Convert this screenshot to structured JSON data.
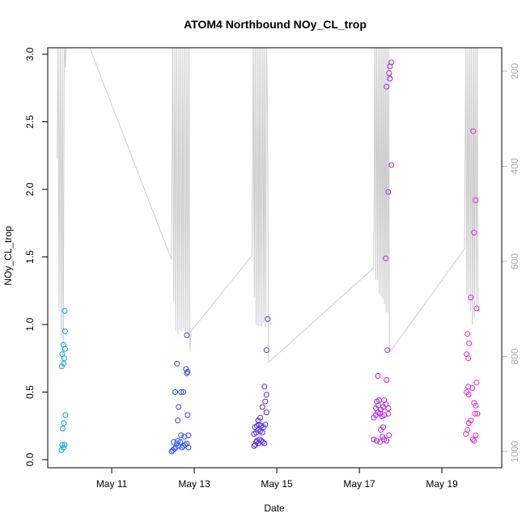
{
  "chart_data": {
    "type": "scatter",
    "title": "ATOM4 Northbound NOy_CL_trop",
    "xlabel": "Date",
    "ylabel": "NOy_CL_trop",
    "x_ticks": [
      "May 11",
      "May 13",
      "May 15",
      "May 17",
      "May 19"
    ],
    "x_tick_values": [
      11,
      13,
      15,
      17,
      19
    ],
    "xlim": [
      9.45,
      20.45
    ],
    "ylim": [
      0,
      3.0
    ],
    "y_ticks": [
      0.0,
      0.5,
      1.0,
      1.5,
      2.0,
      2.5,
      3.0
    ],
    "y_tick_labels": [
      "0.0",
      "0.5",
      "1.0",
      "1.5",
      "2.0",
      "2.5",
      "3.0"
    ],
    "right_axis": {
      "color": "#bbbbbb",
      "label": "",
      "ticks": [
        200,
        400,
        600,
        800,
        1000
      ],
      "tick_labels": [
        "200",
        "400",
        "600",
        "800",
        "1000"
      ],
      "range": [
        1020,
        140
      ],
      "reversed": true
    },
    "grid": false,
    "legend": "none",
    "point_color_gradient": [
      "#00aaee",
      "#2255ff",
      "#5522ee",
      "#aa22ee",
      "#ee22cc"
    ],
    "line_color": "#cccccc",
    "points": [
      [
        9.78,
        0.07
      ],
      [
        9.8,
        0.11
      ],
      [
        9.83,
        0.09
      ],
      [
        9.86,
        0.11
      ],
      [
        9.81,
        0.23
      ],
      [
        9.84,
        0.27
      ],
      [
        9.88,
        0.33
      ],
      [
        9.79,
        0.69
      ],
      [
        9.8,
        0.78
      ],
      [
        9.84,
        0.71
      ],
      [
        9.85,
        0.75
      ],
      [
        9.87,
        0.82
      ],
      [
        9.83,
        0.85
      ],
      [
        9.87,
        0.95
      ],
      [
        9.86,
        1.1
      ],
      [
        12.45,
        0.06
      ],
      [
        12.48,
        0.07
      ],
      [
        12.52,
        0.08
      ],
      [
        12.55,
        0.09
      ],
      [
        12.58,
        0.12
      ],
      [
        12.62,
        0.1
      ],
      [
        12.66,
        0.13
      ],
      [
        12.7,
        0.09
      ],
      [
        12.74,
        0.1
      ],
      [
        12.78,
        0.11
      ],
      [
        12.82,
        0.12
      ],
      [
        12.86,
        0.09
      ],
      [
        12.5,
        0.13
      ],
      [
        12.6,
        0.14
      ],
      [
        12.76,
        0.17
      ],
      [
        12.68,
        0.18
      ],
      [
        12.86,
        0.18
      ],
      [
        12.6,
        0.29
      ],
      [
        12.84,
        0.33
      ],
      [
        12.62,
        0.39
      ],
      [
        12.54,
        0.5
      ],
      [
        12.68,
        0.5
      ],
      [
        12.74,
        0.5
      ],
      [
        12.82,
        0.64
      ],
      [
        12.8,
        0.67
      ],
      [
        12.58,
        0.71
      ],
      [
        12.84,
        0.65
      ],
      [
        12.82,
        0.92
      ],
      [
        14.45,
        0.1
      ],
      [
        14.48,
        0.11
      ],
      [
        14.5,
        0.13
      ],
      [
        14.52,
        0.14
      ],
      [
        14.55,
        0.12
      ],
      [
        14.58,
        0.15
      ],
      [
        14.62,
        0.14
      ],
      [
        14.66,
        0.13
      ],
      [
        14.7,
        0.12
      ],
      [
        14.45,
        0.19
      ],
      [
        14.5,
        0.2
      ],
      [
        14.55,
        0.22
      ],
      [
        14.6,
        0.21
      ],
      [
        14.65,
        0.2
      ],
      [
        14.47,
        0.24
      ],
      [
        14.52,
        0.25
      ],
      [
        14.57,
        0.26
      ],
      [
        14.62,
        0.25
      ],
      [
        14.68,
        0.24
      ],
      [
        14.72,
        0.26
      ],
      [
        14.55,
        0.29
      ],
      [
        14.6,
        0.31
      ],
      [
        14.75,
        0.35
      ],
      [
        14.65,
        0.39
      ],
      [
        14.72,
        0.43
      ],
      [
        14.75,
        0.48
      ],
      [
        14.7,
        0.54
      ],
      [
        14.75,
        0.81
      ],
      [
        14.78,
        1.04
      ],
      [
        17.35,
        0.15
      ],
      [
        17.42,
        0.14
      ],
      [
        17.5,
        0.13
      ],
      [
        17.56,
        0.17
      ],
      [
        17.6,
        0.15
      ],
      [
        17.66,
        0.14
      ],
      [
        17.72,
        0.18
      ],
      [
        17.52,
        0.22
      ],
      [
        17.58,
        0.24
      ],
      [
        17.35,
        0.31
      ],
      [
        17.4,
        0.33
      ],
      [
        17.45,
        0.35
      ],
      [
        17.5,
        0.34
      ],
      [
        17.55,
        0.32
      ],
      [
        17.6,
        0.33
      ],
      [
        17.7,
        0.34
      ],
      [
        17.4,
        0.38
      ],
      [
        17.46,
        0.4
      ],
      [
        17.52,
        0.37
      ],
      [
        17.58,
        0.39
      ],
      [
        17.64,
        0.41
      ],
      [
        17.7,
        0.38
      ],
      [
        17.42,
        0.43
      ],
      [
        17.48,
        0.44
      ],
      [
        17.6,
        0.44
      ],
      [
        17.66,
        0.59
      ],
      [
        17.45,
        0.62
      ],
      [
        17.68,
        0.81
      ],
      [
        17.64,
        1.49
      ],
      [
        17.7,
        1.98
      ],
      [
        17.78,
        2.18
      ],
      [
        17.66,
        2.76
      ],
      [
        17.74,
        2.82
      ],
      [
        17.72,
        2.86
      ],
      [
        17.74,
        2.91
      ],
      [
        17.78,
        2.94
      ],
      [
        19.58,
        0.19
      ],
      [
        19.62,
        0.22
      ],
      [
        19.65,
        0.27
      ],
      [
        19.7,
        0.29
      ],
      [
        19.75,
        0.15
      ],
      [
        19.78,
        0.14
      ],
      [
        19.82,
        0.18
      ],
      [
        19.86,
        0.34
      ],
      [
        19.8,
        0.34
      ],
      [
        19.78,
        0.42
      ],
      [
        19.82,
        0.4
      ],
      [
        19.65,
        0.48
      ],
      [
        19.6,
        0.5
      ],
      [
        19.64,
        0.54
      ],
      [
        19.74,
        0.53
      ],
      [
        19.84,
        0.57
      ],
      [
        19.64,
        0.75
      ],
      [
        19.6,
        0.78
      ],
      [
        19.66,
        0.86
      ],
      [
        19.62,
        0.93
      ],
      [
        19.7,
        1.2
      ],
      [
        19.84,
        1.12
      ],
      [
        19.78,
        1.68
      ],
      [
        19.82,
        1.92
      ],
      [
        19.76,
        2.43
      ]
    ]
  }
}
